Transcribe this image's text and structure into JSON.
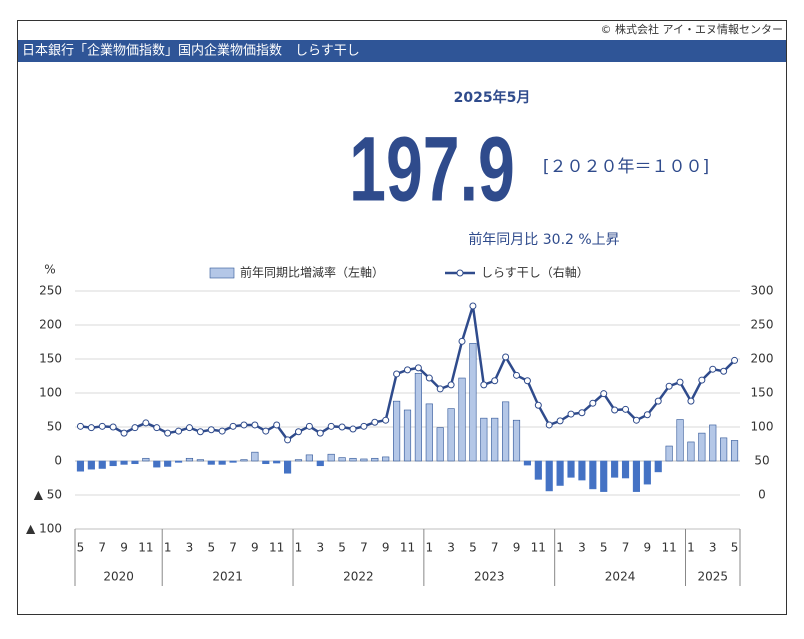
{
  "chart_data": {
    "type": "bar_line",
    "copyright": "© 株式会社 アイ・エヌ情報センター",
    "title": "日本銀行「企業物価指数」国内企業物価指数　しらす干し",
    "period": "2025年5月",
    "headline_value": 197.9,
    "base_label": "[２０２０年＝１００]",
    "yoy_label": "前年同月比 30.2 %上昇",
    "y_unit": "%",
    "categories": [
      "5",
      null,
      "7",
      null,
      "9",
      null,
      "11",
      null,
      "1",
      null,
      "3",
      null,
      "5",
      null,
      "7",
      null,
      "9",
      null,
      "11",
      null,
      "1",
      null,
      "3",
      null,
      "5",
      null,
      "7",
      null,
      "9",
      null,
      "11",
      null,
      "1",
      null,
      "3",
      null,
      "5",
      null,
      "7",
      null,
      "9",
      null,
      "11",
      null,
      "1",
      null,
      "3",
      null,
      "5",
      null,
      "7",
      null,
      "9",
      null,
      "11",
      null,
      "1",
      null,
      "3",
      null,
      "5"
    ],
    "years": [
      "2020",
      "2021",
      "2022",
      "2023",
      "2024",
      "2025"
    ],
    "series": [
      {
        "name": "前年同期比増減率（左軸）",
        "type": "bar",
        "axis": "y",
        "color": "#b4c7e7",
        "negative_color": "#4472c4",
        "values": [
          -15,
          -12,
          -11,
          -7,
          -5,
          -4,
          4,
          -9,
          -8,
          -2,
          4,
          2,
          -5,
          -5,
          -2,
          2,
          13,
          -4,
          -3,
          -18,
          2,
          9,
          -7,
          10,
          5,
          4,
          3,
          4,
          6,
          88,
          75,
          129,
          84,
          49,
          77,
          122,
          173,
          63,
          63,
          87,
          60,
          -6,
          -27,
          -44,
          -36,
          -24,
          -28,
          -41,
          -45,
          -24,
          -25,
          -45,
          -34,
          -16,
          22,
          61,
          28,
          41,
          53,
          34,
          30.2
        ]
      },
      {
        "name": "しらす干し（右軸）",
        "type": "line",
        "axis": "y2",
        "color": "#2f4b8c",
        "values": [
          101,
          99,
          101,
          100,
          91,
          99,
          106,
          99,
          91,
          94,
          99,
          93,
          96,
          94,
          101,
          103,
          103,
          94,
          103,
          81,
          93,
          101,
          91,
          101,
          100,
          97,
          101,
          107,
          110,
          178,
          184,
          187,
          172,
          156,
          162,
          226,
          278,
          162,
          168,
          203,
          176,
          168,
          132,
          103,
          109,
          119,
          121,
          135,
          149,
          125,
          126,
          110,
          118,
          138,
          160,
          166,
          138,
          169,
          185,
          182,
          197.9
        ]
      }
    ],
    "ylim": [
      -100,
      250
    ],
    "yticks": [
      250,
      200,
      150,
      100,
      50,
      0,
      {
        "value": -50,
        "label": "▲ 50"
      },
      {
        "value": -100,
        "label": "▲ 100"
      }
    ],
    "y2lim": [
      -50,
      300
    ],
    "y2ticks": [
      300,
      250,
      200,
      150,
      100,
      50,
      0
    ],
    "grid": true
  }
}
